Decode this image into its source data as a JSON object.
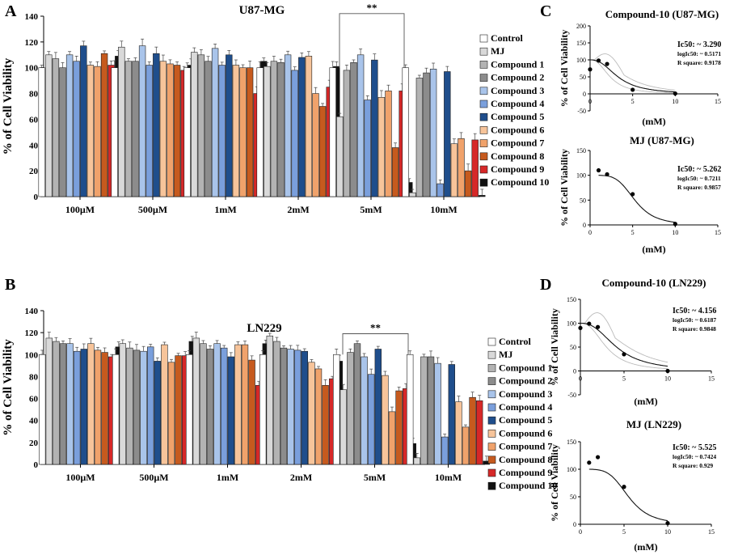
{
  "panel_labels": [
    "A",
    "B",
    "C",
    "D"
  ],
  "colors": {
    "Control": "#ffffff",
    "MJ": "#d9d9d9",
    "Compound 1": "#b3b3b3",
    "Compound 2": "#8c8c8c",
    "Compound 3": "#a9c4ea",
    "Compound 4": "#7a9fdc",
    "Compound 5": "#1f4e8c",
    "Compound 6": "#f7c49a",
    "Compound 7": "#f0a26b",
    "Compound 8": "#c65a1e",
    "Compound 9": "#d62828",
    "Compound 10": "#111111"
  },
  "chart_data": [
    {
      "id": "A",
      "type": "bar",
      "title": "U87-MG",
      "ylabel": "% of Cell Viability",
      "xlabel": "",
      "ylim": [
        0,
        140
      ],
      "yticks": [
        0,
        20,
        40,
        60,
        80,
        100,
        120,
        140
      ],
      "categories": [
        "100µM",
        "500µM",
        "1mM",
        "2mM",
        "5mM",
        "10mM"
      ],
      "significance": {
        "label": "**",
        "category": "5mM"
      },
      "series": [
        {
          "name": "Control",
          "values": [
            100,
            100,
            100,
            100,
            100,
            100
          ]
        },
        {
          "name": "MJ",
          "values": [
            110,
            116,
            112,
            101,
            62,
            3
          ]
        },
        {
          "name": "Compound 1",
          "values": [
            107,
            105,
            110,
            105,
            98,
            92
          ]
        },
        {
          "name": "Compound 2",
          "values": [
            100,
            105,
            105,
            104,
            104,
            96
          ]
        },
        {
          "name": "Compound 3",
          "values": [
            110,
            117,
            115,
            110,
            110,
            99
          ]
        },
        {
          "name": "Compound 4",
          "values": [
            105,
            102,
            102,
            98,
            75,
            10
          ]
        },
        {
          "name": "Compound 5",
          "values": [
            117,
            111,
            110,
            108,
            106,
            97
          ]
        },
        {
          "name": "Compound 6",
          "values": [
            102,
            105,
            102,
            109,
            77,
            41
          ]
        },
        {
          "name": "Compound 7",
          "values": [
            101,
            103,
            100,
            80,
            82,
            45
          ]
        },
        {
          "name": "Compound 8",
          "values": [
            111,
            102,
            100,
            70,
            38,
            20
          ]
        },
        {
          "name": "Compound 9",
          "values": [
            102,
            98,
            80,
            85,
            82,
            44
          ]
        },
        {
          "name": "Compound 10",
          "values": [
            109,
            102,
            105,
            101,
            11,
            1
          ]
        }
      ]
    },
    {
      "id": "B",
      "type": "bar",
      "title": "LN229",
      "ylabel": "% of Cell Viability",
      "xlabel": "",
      "ylim": [
        0,
        140
      ],
      "yticks": [
        0,
        20,
        40,
        60,
        80,
        100,
        120,
        140
      ],
      "categories": [
        "100µM",
        "500µM",
        "1mM",
        "2mM",
        "5mM",
        "10mM"
      ],
      "significance": {
        "label": "**",
        "category": "5mM"
      },
      "series": [
        {
          "name": "Control",
          "values": [
            100,
            100,
            100,
            100,
            100,
            100
          ]
        },
        {
          "name": "MJ",
          "values": [
            115,
            110,
            115,
            117,
            68,
            6
          ]
        },
        {
          "name": "Compound 1",
          "values": [
            112,
            106,
            110,
            112,
            102,
            98
          ]
        },
        {
          "name": "Compound 2",
          "values": [
            110,
            104,
            105,
            106,
            110,
            98
          ]
        },
        {
          "name": "Compound 3",
          "values": [
            110,
            103,
            110,
            105,
            98,
            92
          ]
        },
        {
          "name": "Compound 4",
          "values": [
            103,
            107,
            106,
            104,
            82,
            25
          ]
        },
        {
          "name": "Compound 5",
          "values": [
            105,
            94,
            98,
            103,
            105,
            91
          ]
        },
        {
          "name": "Compound 6",
          "values": [
            110,
            109,
            109,
            93,
            81,
            57
          ]
        },
        {
          "name": "Compound 7",
          "values": [
            104,
            93,
            109,
            87,
            48,
            34
          ]
        },
        {
          "name": "Compound 8",
          "values": [
            102,
            99,
            95,
            72,
            67,
            61
          ]
        },
        {
          "name": "Compound 9",
          "values": [
            98,
            99,
            72,
            78,
            69,
            58
          ]
        },
        {
          "name": "Compound 10",
          "values": [
            107,
            112,
            110,
            94,
            19,
            3
          ]
        }
      ]
    },
    {
      "id": "C1",
      "type": "scatter",
      "title": "Compound-10 (U87-MG)",
      "xlabel": "(mM)",
      "ylabel": "% of Cell Viability",
      "xlim": [
        0,
        15
      ],
      "ylim": [
        -50,
        200
      ],
      "xticks": [
        0,
        5,
        10,
        15
      ],
      "yticks": [
        -50,
        0,
        50,
        100,
        150,
        200
      ],
      "points_x": [
        0,
        1,
        2,
        5,
        10
      ],
      "points_y": [
        72,
        98,
        88,
        12,
        1
      ],
      "fit": {
        "ic50": 3.29,
        "hill": 2.5,
        "top": 100,
        "bottom": 0
      },
      "confidence_band": true,
      "stats": [
        "Ic50: ~ 3.290",
        "logIc50: ~ 0.5171",
        "R square: 0.9178"
      ]
    },
    {
      "id": "C2",
      "type": "scatter",
      "title": "MJ (U87-MG)",
      "xlabel": "(mM)",
      "ylabel": "% of Cell Viability",
      "xlim": [
        0,
        15
      ],
      "ylim": [
        0,
        150
      ],
      "xticks": [
        0,
        5,
        10,
        15
      ],
      "yticks": [
        0,
        50,
        100,
        150
      ],
      "points_x": [
        1,
        2,
        5,
        10
      ],
      "points_y": [
        110,
        102,
        62,
        2
      ],
      "fit": {
        "ic50": 5.262,
        "hill": 4.5,
        "top": 100,
        "bottom": 0
      },
      "confidence_band": false,
      "stats": [
        "Ic50: ~ 5.262",
        "logIc50: ~ 0.7211",
        "R square: 0.9857"
      ]
    },
    {
      "id": "D1",
      "type": "scatter",
      "title": "Compound-10 (LN229)",
      "xlabel": "(mM)",
      "ylabel": "% of Cell Viability",
      "xlim": [
        0,
        15
      ],
      "ylim": [
        -50,
        150
      ],
      "xticks": [
        0,
        5,
        10,
        15
      ],
      "yticks": [
        -50,
        0,
        50,
        100,
        150
      ],
      "points_x": [
        0,
        1,
        2,
        5,
        10
      ],
      "points_y": [
        90,
        99,
        92,
        35,
        0
      ],
      "fit": {
        "ic50": 4.156,
        "hill": 2.5,
        "top": 100,
        "bottom": 0
      },
      "confidence_band": true,
      "stats": [
        "Ic50: ~ 4.156",
        "logIc50: ~ 0.6187",
        "R square: 0.9848"
      ]
    },
    {
      "id": "D2",
      "type": "scatter",
      "title": "MJ (LN229)",
      "xlabel": "(mM)",
      "ylabel": "% of Cell Viability",
      "xlim": [
        0,
        15
      ],
      "ylim": [
        0,
        150
      ],
      "xticks": [
        0,
        5,
        10,
        15
      ],
      "yticks": [
        0,
        50,
        100,
        150
      ],
      "points_x": [
        1,
        2,
        5,
        10
      ],
      "points_y": [
        112,
        122,
        68,
        2
      ],
      "fit": {
        "ic50": 5.525,
        "hill": 4.5,
        "top": 100,
        "bottom": 0
      },
      "confidence_band": false,
      "stats": [
        "Ic50: ~ 5.525",
        "logIc50: ~ 0.7424",
        "R square: 0.929"
      ]
    }
  ]
}
